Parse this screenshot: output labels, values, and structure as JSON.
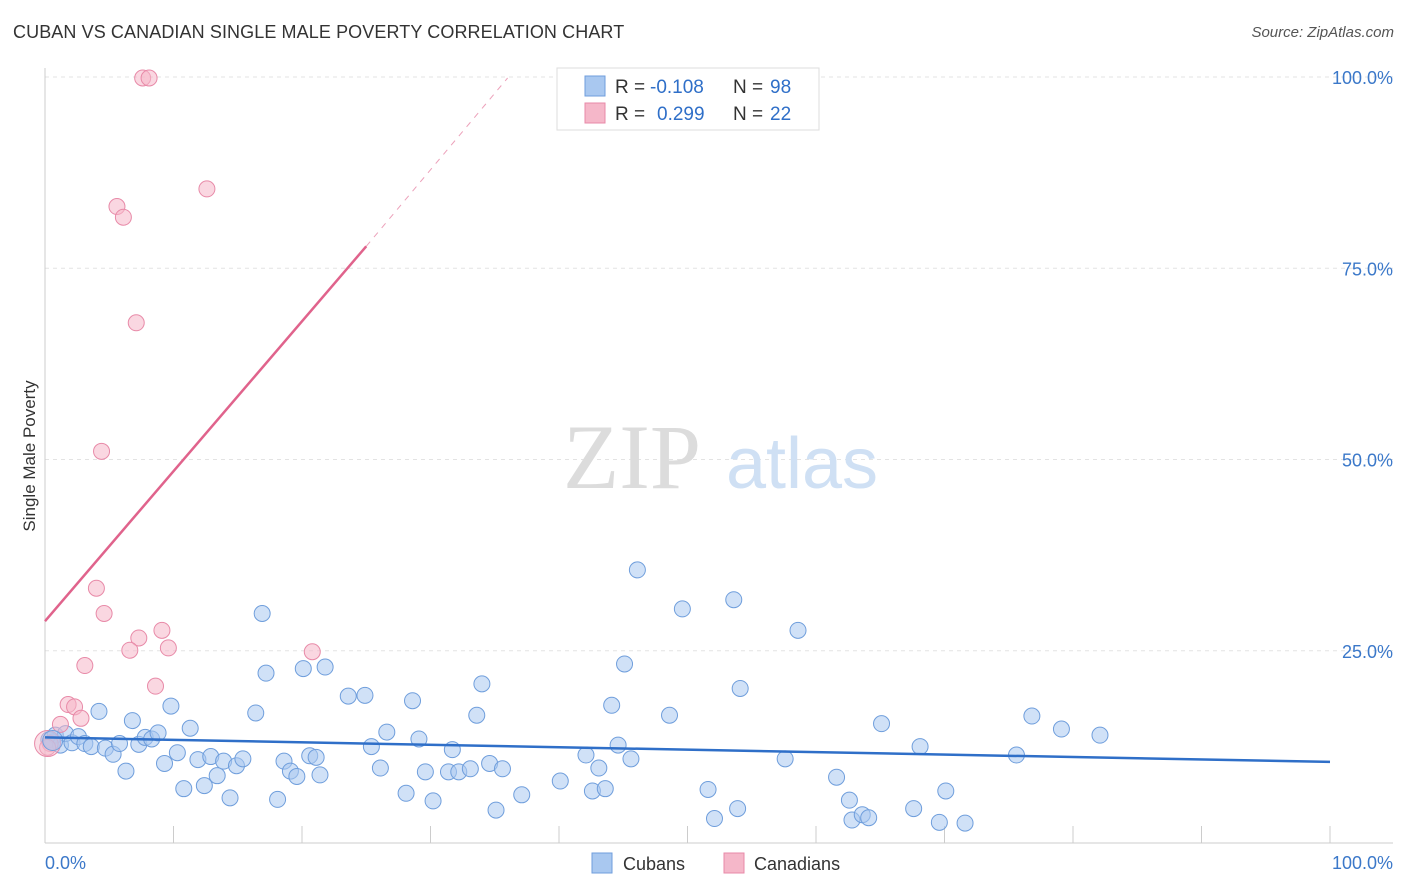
{
  "chart_data": {
    "type": "scatter",
    "title": "CUBAN VS CANADIAN SINGLE MALE POVERTY CORRELATION CHART",
    "source": "Source: ZipAtlas.com",
    "ylabel": "Single Male Poverty",
    "xlabel": "",
    "xlim": [
      0,
      100
    ],
    "ylim": [
      0,
      100
    ],
    "x_tick_labels": [
      {
        "value": 0,
        "label": "0.0%"
      },
      {
        "value": 100,
        "label": "100.0%"
      }
    ],
    "y_tick_labels": [
      {
        "value": 25,
        "label": "25.0%"
      },
      {
        "value": 50,
        "label": "50.0%"
      },
      {
        "value": 75,
        "label": "75.0%"
      },
      {
        "value": 100,
        "label": "100.0%"
      }
    ],
    "watermark": {
      "zip": "ZIP",
      "atlas": "atlas"
    },
    "legend_top": [
      {
        "r_label": "R =",
        "r_value": "-0.108",
        "n_label": "N =",
        "n_value": "98",
        "color": "#a9c8f0",
        "edge": "#6f9edc"
      },
      {
        "r_label": "R =",
        "r_value": "0.299",
        "n_label": "N =",
        "n_value": "22",
        "color": "#f5b7c9",
        "edge": "#e88aa8"
      }
    ],
    "series": [
      {
        "name": "Cubans",
        "color": "#a9c8f0",
        "edge": "#6f9edc",
        "trend_color": "#2f6fc8",
        "trend": {
          "x0": 0,
          "y0": 13.8,
          "x1": 100,
          "y1": 10.6
        },
        "points": [
          [
            0.3,
            13.5
          ],
          [
            0.6,
            13.2
          ],
          [
            0.8,
            14.1
          ],
          [
            1.2,
            12.8
          ],
          [
            1.6,
            14.3
          ],
          [
            2.1,
            13.1
          ],
          [
            2.6,
            13.9
          ],
          [
            3.1,
            13.0
          ],
          [
            3.6,
            12.6
          ],
          [
            4.2,
            17.2
          ],
          [
            4.7,
            12.4
          ],
          [
            5.3,
            11.6
          ],
          [
            5.8,
            13.0
          ],
          [
            6.3,
            9.4
          ],
          [
            6.8,
            16.0
          ],
          [
            7.3,
            12.9
          ],
          [
            7.8,
            13.8
          ],
          [
            8.3,
            13.6
          ],
          [
            8.8,
            14.4
          ],
          [
            9.3,
            10.4
          ],
          [
            9.8,
            17.9
          ],
          [
            10.3,
            11.8
          ],
          [
            10.8,
            7.1
          ],
          [
            11.3,
            15.0
          ],
          [
            11.9,
            10.9
          ],
          [
            12.4,
            7.5
          ],
          [
            12.9,
            11.3
          ],
          [
            13.4,
            8.8
          ],
          [
            13.9,
            10.7
          ],
          [
            14.4,
            5.9
          ],
          [
            14.9,
            10.1
          ],
          [
            15.4,
            11.0
          ],
          [
            16.4,
            17.0
          ],
          [
            16.9,
            30.0
          ],
          [
            17.2,
            22.2
          ],
          [
            18.1,
            5.7
          ],
          [
            18.6,
            10.7
          ],
          [
            19.1,
            9.4
          ],
          [
            19.6,
            8.7
          ],
          [
            20.1,
            22.8
          ],
          [
            20.6,
            11.4
          ],
          [
            21.1,
            11.2
          ],
          [
            21.4,
            8.9
          ],
          [
            21.8,
            23.0
          ],
          [
            23.6,
            19.2
          ],
          [
            24.9,
            19.3
          ],
          [
            25.4,
            12.6
          ],
          [
            26.1,
            9.8
          ],
          [
            26.6,
            14.5
          ],
          [
            28.1,
            6.5
          ],
          [
            28.6,
            18.6
          ],
          [
            29.1,
            13.6
          ],
          [
            29.6,
            9.3
          ],
          [
            30.2,
            5.5
          ],
          [
            31.4,
            9.3
          ],
          [
            31.7,
            12.2
          ],
          [
            32.2,
            9.3
          ],
          [
            33.1,
            9.7
          ],
          [
            33.6,
            16.7
          ],
          [
            34.0,
            20.8
          ],
          [
            34.6,
            10.4
          ],
          [
            35.1,
            4.3
          ],
          [
            35.6,
            9.7
          ],
          [
            37.1,
            6.3
          ],
          [
            40.1,
            8.1
          ],
          [
            42.1,
            11.5
          ],
          [
            42.6,
            6.8
          ],
          [
            43.1,
            9.8
          ],
          [
            43.6,
            7.1
          ],
          [
            44.1,
            18.0
          ],
          [
            44.6,
            12.8
          ],
          [
            45.1,
            23.4
          ],
          [
            45.6,
            11.0
          ],
          [
            46.1,
            35.7
          ],
          [
            48.6,
            16.7
          ],
          [
            49.6,
            30.6
          ],
          [
            51.6,
            7.0
          ],
          [
            52.1,
            3.2
          ],
          [
            53.6,
            31.8
          ],
          [
            53.9,
            4.5
          ],
          [
            54.1,
            20.2
          ],
          [
            57.6,
            11.0
          ],
          [
            58.6,
            27.8
          ],
          [
            61.6,
            8.6
          ],
          [
            62.6,
            5.6
          ],
          [
            62.8,
            3.0
          ],
          [
            63.6,
            3.7
          ],
          [
            64.1,
            3.3
          ],
          [
            65.1,
            15.6
          ],
          [
            67.6,
            4.5
          ],
          [
            68.1,
            12.6
          ],
          [
            69.6,
            2.7
          ],
          [
            70.1,
            6.8
          ],
          [
            71.6,
            2.6
          ],
          [
            75.6,
            11.5
          ],
          [
            76.8,
            16.6
          ],
          [
            79.1,
            14.9
          ],
          [
            82.1,
            14.1
          ]
        ]
      },
      {
        "name": "Canadians",
        "color": "#f5b7c9",
        "edge": "#e88aa8",
        "trend_color": "#e0638c",
        "trend": {
          "x0": 0,
          "y0": 29.0,
          "x1": 25,
          "y1": 78.0
        },
        "trend_dash_end": {
          "x": 36,
          "y": 100
        },
        "points": [
          [
            7.6,
            100
          ],
          [
            8.1,
            100
          ],
          [
            12.6,
            85.5
          ],
          [
            5.6,
            83.2
          ],
          [
            6.1,
            81.8
          ],
          [
            7.1,
            68.0
          ],
          [
            4.4,
            51.2
          ],
          [
            4.0,
            33.3
          ],
          [
            4.6,
            30.0
          ],
          [
            9.1,
            27.8
          ],
          [
            7.3,
            26.8
          ],
          [
            9.6,
            25.5
          ],
          [
            6.6,
            25.2
          ],
          [
            20.8,
            25.0
          ],
          [
            3.1,
            23.2
          ],
          [
            8.6,
            20.5
          ],
          [
            1.8,
            18.1
          ],
          [
            2.3,
            17.8
          ],
          [
            2.8,
            16.3
          ],
          [
            1.2,
            15.5
          ],
          [
            0.4,
            13.0
          ],
          [
            0.2,
            12.5
          ]
        ]
      }
    ]
  },
  "legend_bottom": [
    {
      "label": "Cubans",
      "color": "#a9c8f0",
      "edge": "#6f9edc"
    },
    {
      "label": "Canadians",
      "color": "#f5b7c9",
      "edge": "#e88aa8"
    }
  ],
  "colors": {
    "axis_text": "#3b78c9",
    "grid": "#e3e3e3",
    "axis_line": "#cccccc",
    "text": "#333333",
    "value_blue": "#2f6fc8"
  }
}
